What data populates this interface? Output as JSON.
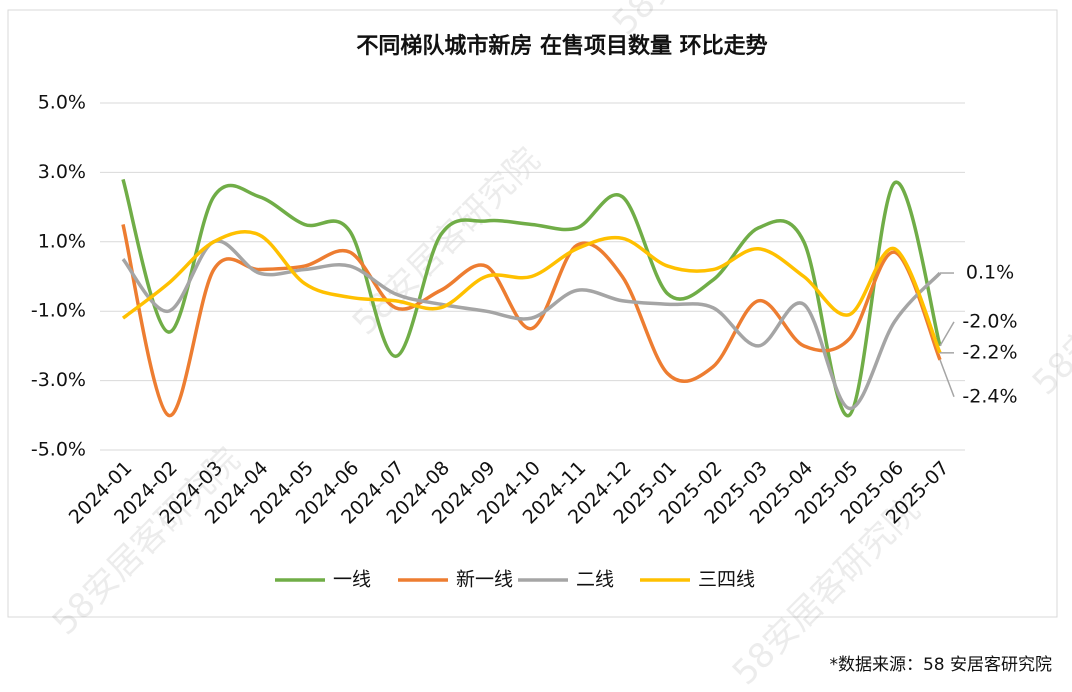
{
  "chart_data": {
    "type": "line",
    "title": "不同梯队城市新房 在售项目数量 环比走势",
    "categories": [
      "2024-01",
      "2024-02",
      "2024-03",
      "2024-04",
      "2024-05",
      "2024-06",
      "2024-07",
      "2024-08",
      "2024-09",
      "2024-10",
      "2024-11",
      "2024-12",
      "2025-01",
      "2025-02",
      "2025-03",
      "2025-04",
      "2025-05",
      "2025-06",
      "2025-07"
    ],
    "series": [
      {
        "name": "一线",
        "color": "#70ad47",
        "values": [
          2.8,
          -1.6,
          2.3,
          2.3,
          1.5,
          1.3,
          -2.3,
          1.2,
          1.6,
          1.5,
          1.4,
          2.3,
          -0.5,
          -0.1,
          1.4,
          1.0,
          -4.0,
          2.7,
          -2.0
        ],
        "value_labels": [
          null,
          null,
          null,
          null,
          null,
          null,
          null,
          null,
          null,
          null,
          null,
          null,
          null,
          null,
          null,
          null,
          null,
          null,
          "-2.0%"
        ]
      },
      {
        "name": "新一线",
        "color": "#ed7d31",
        "values": [
          1.5,
          -4.0,
          0.2,
          0.2,
          0.3,
          0.7,
          -0.9,
          -0.4,
          0.3,
          -1.5,
          0.9,
          0.0,
          -2.8,
          -2.6,
          -0.7,
          -2.0,
          -1.8,
          0.7,
          -2.4
        ],
        "value_labels": [
          null,
          null,
          null,
          null,
          null,
          null,
          null,
          null,
          null,
          null,
          null,
          null,
          null,
          null,
          null,
          null,
          null,
          null,
          "-2.4%"
        ]
      },
      {
        "name": "二线",
        "color": "#a5a5a5",
        "values": [
          0.5,
          -1.0,
          1.0,
          0.1,
          0.2,
          0.3,
          -0.5,
          -0.8,
          -1.0,
          -1.2,
          -0.4,
          -0.7,
          -0.8,
          -0.9,
          -2.0,
          -0.8,
          -3.8,
          -1.3,
          0.1
        ],
        "value_labels": [
          null,
          null,
          null,
          null,
          null,
          null,
          null,
          null,
          null,
          null,
          null,
          null,
          null,
          null,
          null,
          null,
          null,
          null,
          "0.1%"
        ]
      },
      {
        "name": "三四线",
        "color": "#ffc000",
        "values": [
          -1.2,
          -0.2,
          1.0,
          1.2,
          -0.2,
          -0.6,
          -0.7,
          -0.9,
          0.0,
          0.0,
          0.8,
          1.1,
          0.3,
          0.2,
          0.8,
          0.0,
          -1.1,
          0.8,
          -2.2
        ],
        "value_labels": [
          null,
          null,
          null,
          null,
          null,
          null,
          null,
          null,
          null,
          null,
          null,
          null,
          null,
          null,
          null,
          null,
          null,
          null,
          "-2.2%"
        ]
      }
    ],
    "ylim": [
      -5,
      5
    ],
    "yticks": [
      {
        "value": -5,
        "label": "-5.0%"
      },
      {
        "value": -3,
        "label": "-3.0%"
      },
      {
        "value": -1,
        "label": "-1.0%"
      },
      {
        "value": 1,
        "label": "1.0%"
      },
      {
        "value": 3,
        "label": "3.0%"
      },
      {
        "value": 5,
        "label": "5.0%"
      }
    ],
    "grid": true,
    "legend": "bottom",
    "source": "*数据来源：58 安居客研究院",
    "watermark": "58安居客研究院"
  }
}
